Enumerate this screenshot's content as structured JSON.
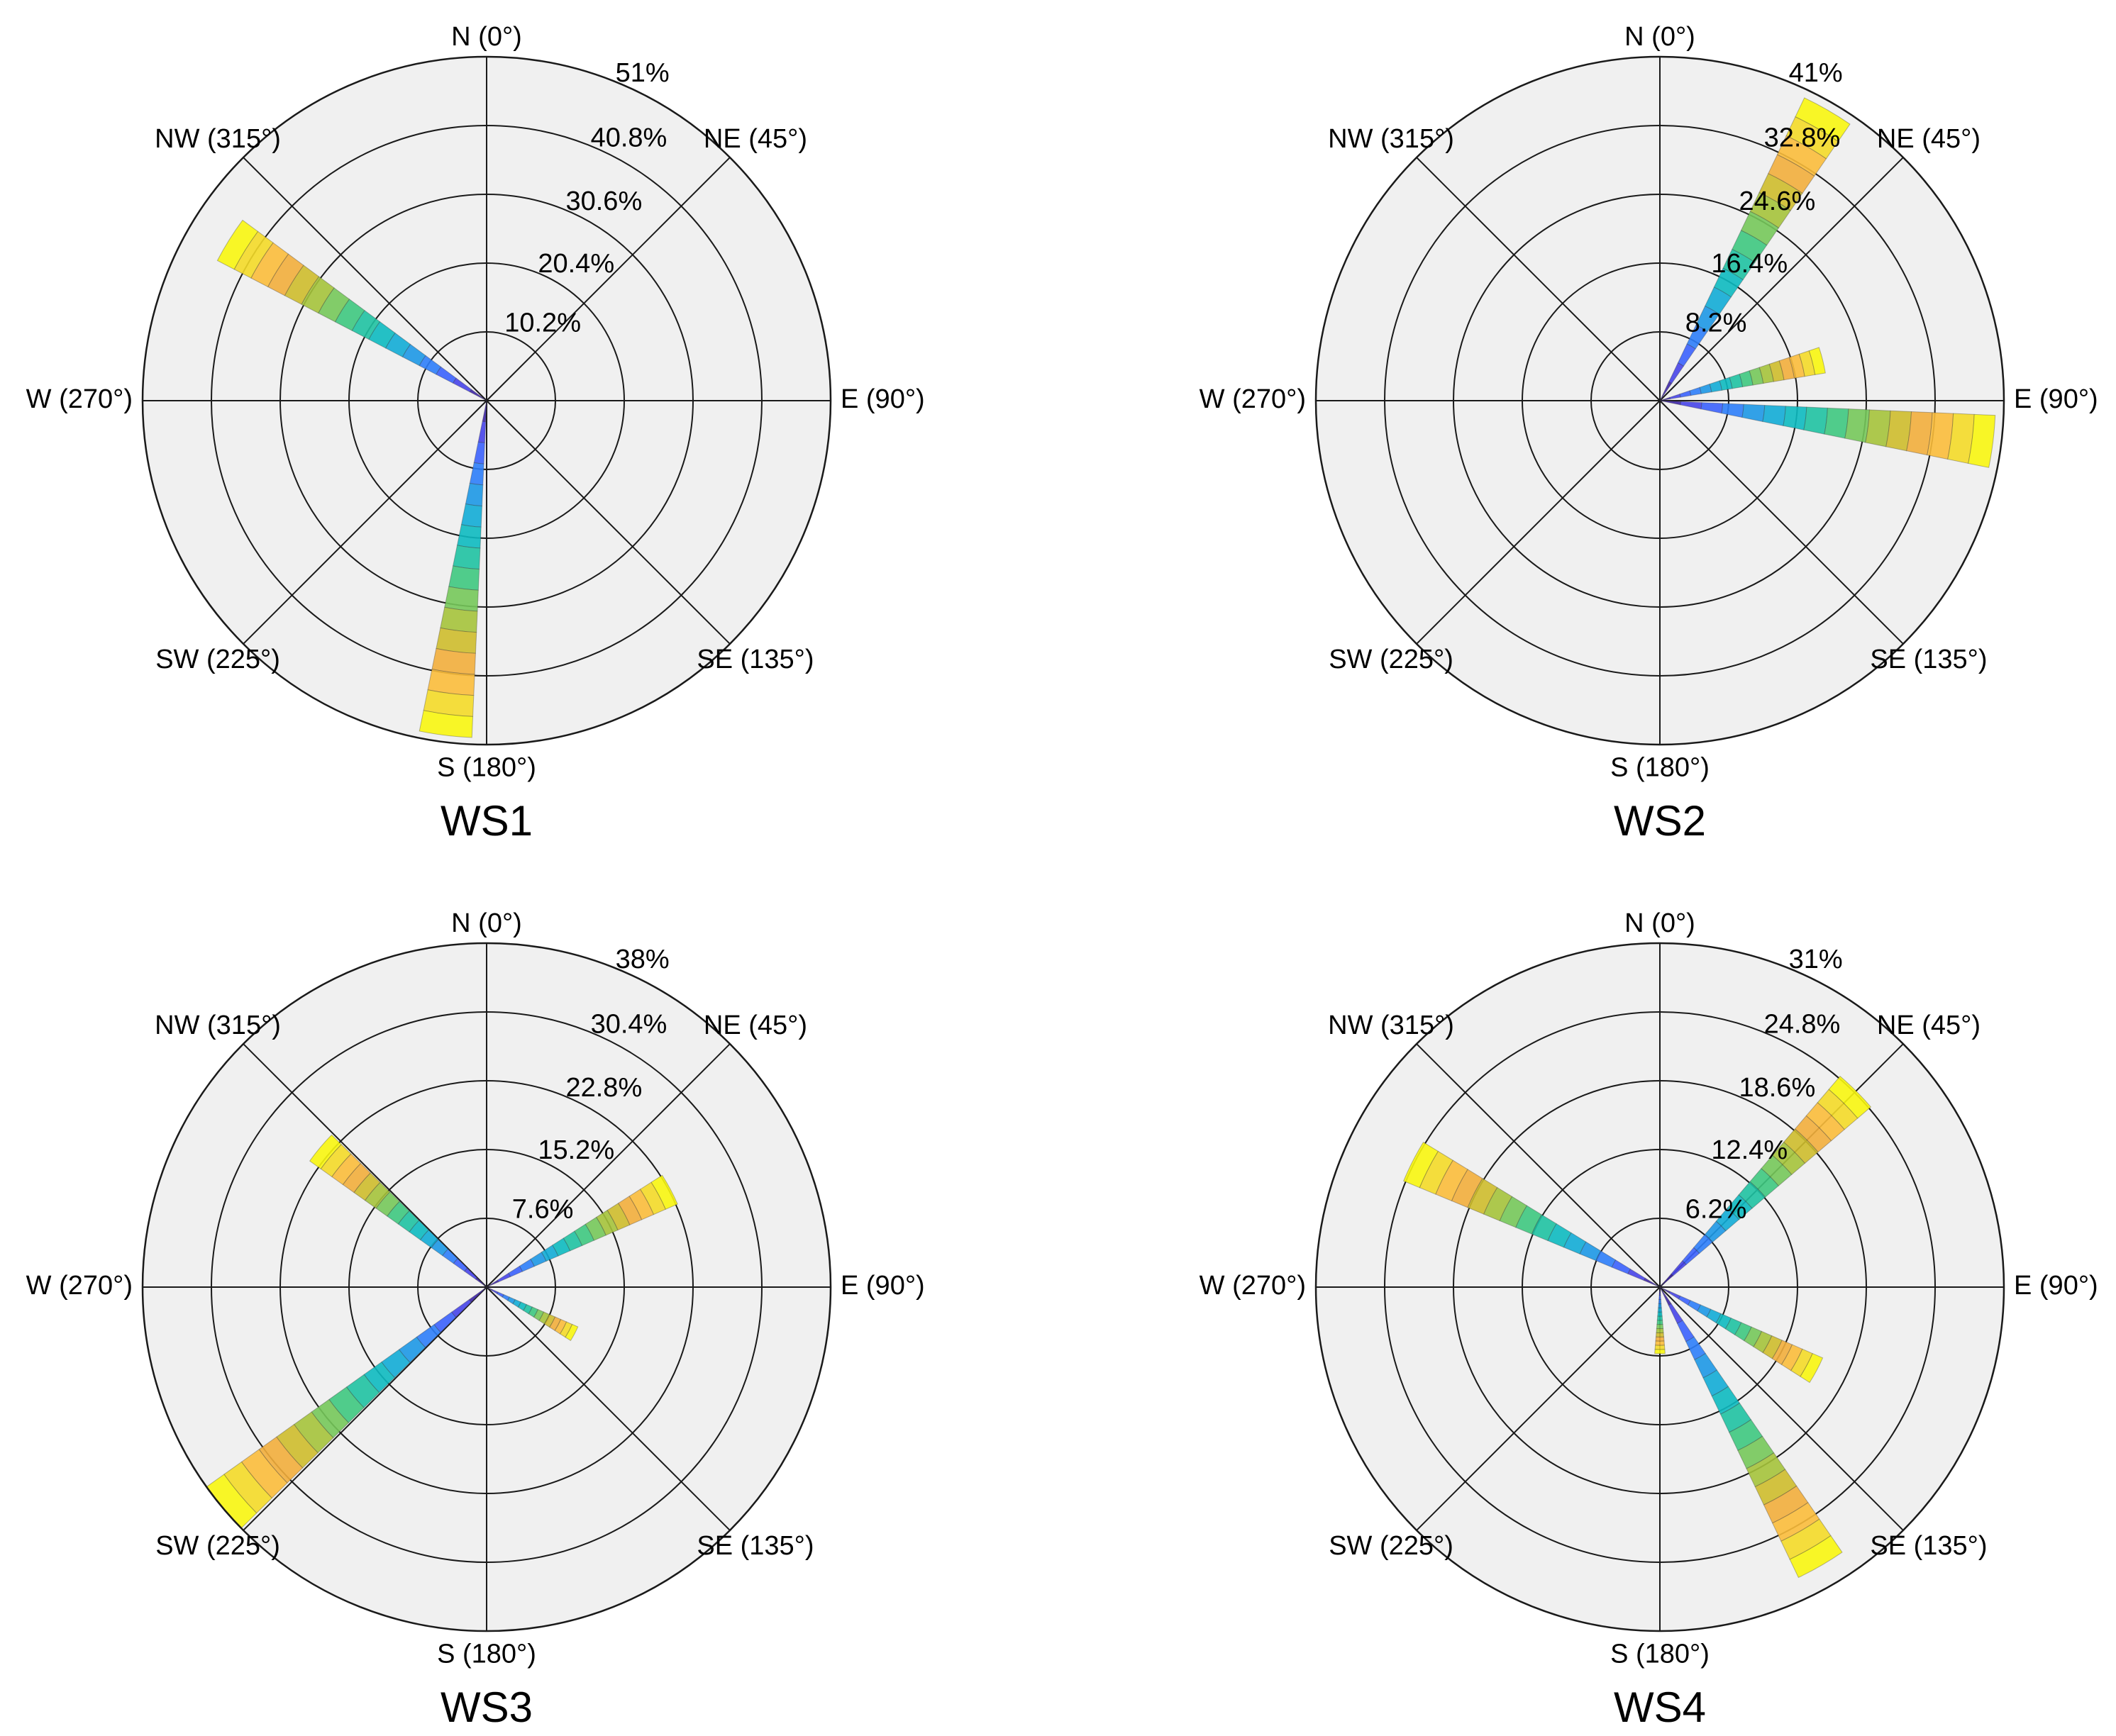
{
  "chart_data": [
    {
      "type": "wind-rose",
      "title": "WS1",
      "rmax": 51,
      "ring_labels": [
        "10.2%",
        "20.4%",
        "30.6%",
        "40.8%",
        "51%"
      ],
      "direction_labels": [
        "N (0°)",
        "NE (45°)",
        "E (90°)",
        "SE (135°)",
        "S (180°)",
        "SW (225°)",
        "W (270°)",
        "NW (315°)"
      ],
      "bars": [
        {
          "direction": 187,
          "total": 50
        },
        {
          "direction": 302,
          "total": 45
        }
      ]
    },
    {
      "type": "wind-rose",
      "title": "WS2",
      "rmax": 41,
      "ring_labels": [
        "8.2%",
        "16.4%",
        "24.6%",
        "32.8%",
        "41%"
      ],
      "direction_labels": [
        "N (0°)",
        "NE (45°)",
        "E (90°)",
        "SE (135°)",
        "S (180°)",
        "SW (225°)",
        "W (270°)",
        "NW (315°)"
      ],
      "bars": [
        {
          "direction": 30,
          "total": 40
        },
        {
          "direction": 76,
          "total": 20
        },
        {
          "direction": 97,
          "total": 40
        }
      ]
    },
    {
      "type": "wind-rose",
      "title": "WS3",
      "rmax": 38,
      "ring_labels": [
        "7.6%",
        "15.2%",
        "22.8%",
        "30.4%",
        "38%"
      ],
      "direction_labels": [
        "N (0°)",
        "NE (45°)",
        "E (90°)",
        "SE (135°)",
        "S (180°)",
        "SW (225°)",
        "W (270°)",
        "NW (315°)"
      ],
      "bars": [
        {
          "direction": 62,
          "total": 23
        },
        {
          "direction": 118,
          "total": 11
        },
        {
          "direction": 230,
          "total": 38
        },
        {
          "direction": 310,
          "total": 24
        }
      ]
    },
    {
      "type": "wind-rose",
      "title": "WS4",
      "rmax": 31,
      "ring_labels": [
        "6.2%",
        "12.4%",
        "18.6%",
        "24.8%",
        "31%"
      ],
      "direction_labels": [
        "N (0°)",
        "NE (45°)",
        "E (90°)",
        "SE (135°)",
        "S (180°)",
        "SW (225°)",
        "W (270°)",
        "NW (315°)"
      ],
      "bars": [
        {
          "direction": 45,
          "total": 25
        },
        {
          "direction": 118,
          "total": 16
        },
        {
          "direction": 150,
          "total": 29
        },
        {
          "direction": 180,
          "total": 6
        },
        {
          "direction": 297,
          "total": 25
        }
      ]
    }
  ],
  "colors": {
    "panel_fill": "#f0f0f0",
    "grid": "#1a1a1a",
    "bin_colors": [
      "#3e26a8",
      "#4744e9",
      "#3b62fd",
      "#2d7ef9",
      "#1d98e5",
      "#12acd6",
      "#0dbac0",
      "#1fc2a2",
      "#3ec87f",
      "#75c85a",
      "#a5c33b",
      "#cebd2c",
      "#f2ae3c",
      "#fbbd3b",
      "#f4da28",
      "#f8f60f"
    ]
  }
}
